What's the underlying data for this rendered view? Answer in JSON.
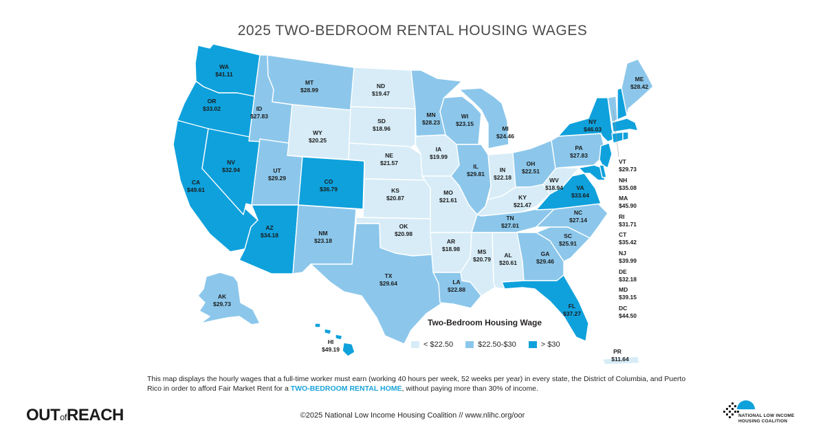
{
  "title": "2025 TWO-BEDROOM RENTAL HOUSING WAGES",
  "colors": {
    "low": "#d7ecf7",
    "mid": "#8cc7eb",
    "high": "#0fa1dc"
  },
  "legend": {
    "title": "Two-Bedroom Housing Wage",
    "items": [
      {
        "label": "< $22.50",
        "color": "#d7ecf7"
      },
      {
        "label": "$22.50-$30",
        "color": "#8cc7eb"
      },
      {
        "label": "> $30",
        "color": "#0fa1dc"
      }
    ]
  },
  "states": {
    "WA": {
      "abbr": "WA",
      "wage": "$41.11"
    },
    "OR": {
      "abbr": "OR",
      "wage": "$33.02"
    },
    "CA": {
      "abbr": "CA",
      "wage": "$49.61"
    },
    "NV": {
      "abbr": "NV",
      "wage": "$32.94"
    },
    "ID": {
      "abbr": "ID",
      "wage": "$27.83"
    },
    "MT": {
      "abbr": "MT",
      "wage": "$28.99"
    },
    "WY": {
      "abbr": "WY",
      "wage": "$20.25"
    },
    "UT": {
      "abbr": "UT",
      "wage": "$29.29"
    },
    "AZ": {
      "abbr": "AZ",
      "wage": "$34.18"
    },
    "CO": {
      "abbr": "CO",
      "wage": "$36.79"
    },
    "NM": {
      "abbr": "NM",
      "wage": "$23.18"
    },
    "ND": {
      "abbr": "ND",
      "wage": "$19.47"
    },
    "SD": {
      "abbr": "SD",
      "wage": "$18.96"
    },
    "NE": {
      "abbr": "NE",
      "wage": "$21.57"
    },
    "KS": {
      "abbr": "KS",
      "wage": "$20.87"
    },
    "OK": {
      "abbr": "OK",
      "wage": "$20.98"
    },
    "TX": {
      "abbr": "TX",
      "wage": "$29.64"
    },
    "MN": {
      "abbr": "MN",
      "wage": "$28.23"
    },
    "IA": {
      "abbr": "IA",
      "wage": "$19.99"
    },
    "MO": {
      "abbr": "MO",
      "wage": "$21.61"
    },
    "AR": {
      "abbr": "AR",
      "wage": "$18.98"
    },
    "LA": {
      "abbr": "LA",
      "wage": "$22.88"
    },
    "WI": {
      "abbr": "WI",
      "wage": "$23.15"
    },
    "IL": {
      "abbr": "IL",
      "wage": "$29.81"
    },
    "MI": {
      "abbr": "MI",
      "wage": "$24.46"
    },
    "IN": {
      "abbr": "IN",
      "wage": "$22.18"
    },
    "OH": {
      "abbr": "OH",
      "wage": "$22.51"
    },
    "KY": {
      "abbr": "KY",
      "wage": "$21.47"
    },
    "TN": {
      "abbr": "TN",
      "wage": "$27.01"
    },
    "MS": {
      "abbr": "MS",
      "wage": "$20.79"
    },
    "AL": {
      "abbr": "AL",
      "wage": "$20.61"
    },
    "GA": {
      "abbr": "GA",
      "wage": "$29.46"
    },
    "FL": {
      "abbr": "FL",
      "wage": "$37.27"
    },
    "SC": {
      "abbr": "SC",
      "wage": "$25.91"
    },
    "NC": {
      "abbr": "NC",
      "wage": "$27.14"
    },
    "VA": {
      "abbr": "VA",
      "wage": "$33.64"
    },
    "WV": {
      "abbr": "WV",
      "wage": "$18.94"
    },
    "PA": {
      "abbr": "PA",
      "wage": "$27.83"
    },
    "NY": {
      "abbr": "NY",
      "wage": "$46.03"
    },
    "ME": {
      "abbr": "ME",
      "wage": "$28.42"
    },
    "AK": {
      "abbr": "AK",
      "wage": "$29.73"
    },
    "HI": {
      "abbr": "HI",
      "wage": "$49.19"
    },
    "PR": {
      "abbr": "PR",
      "wage": "$11.64"
    }
  },
  "northeast_list": [
    {
      "abbr": "VT",
      "wage": "$29.73"
    },
    {
      "abbr": "NH",
      "wage": "$35.08"
    },
    {
      "abbr": "MA",
      "wage": "$45.90"
    },
    {
      "abbr": "RI",
      "wage": "$31.71"
    },
    {
      "abbr": "CT",
      "wage": "$35.42"
    },
    {
      "abbr": "NJ",
      "wage": "$39.99"
    },
    {
      "abbr": "DE",
      "wage": "$32.18"
    },
    {
      "abbr": "MD",
      "wage": "$39.15"
    },
    {
      "abbr": "DC",
      "wage": "$44.50"
    }
  ],
  "caption": {
    "text_before": "This map displays the hourly wages that a full-time worker must earn (working 40 hours per week, 52 weeks per year) in every state, the District of Columbia, and Puerto Rico in order to afford Fair Market Rent for a ",
    "highlight": "TWO-BEDROOM RENTAL HOME",
    "text_after": ", without paying more than 30% of income."
  },
  "footer": {
    "logo_out": "OUT",
    "logo_of": "of",
    "logo_reach": "REACH",
    "copyright": "©2025 National Low Income Housing Coalition // www.nlihc.org/oor",
    "org_line1": "NATIONAL LOW INCOME",
    "org_line2": "HOUSING COALITION"
  }
}
